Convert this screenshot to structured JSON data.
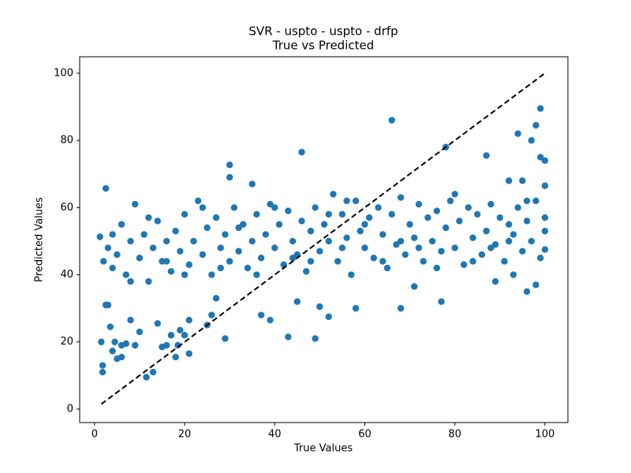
{
  "chart_data": {
    "type": "scatter",
    "title": "SVR - uspto - uspto - drfp",
    "subtitle": "True vs Predicted",
    "xlabel": "True Values",
    "ylabel": "Predicted Values",
    "xlim": [
      -3.3,
      105.1
    ],
    "ylim": [
      -4.0,
      104.9
    ],
    "xticks": [
      0,
      20,
      40,
      60,
      80,
      100
    ],
    "yticks": [
      0,
      20,
      40,
      60,
      80,
      100
    ],
    "grid": false,
    "series": [
      {
        "color": "#1f77b4",
        "x": [
          2.5,
          1.2,
          1.5,
          1.8,
          1.8,
          2.5,
          3,
          3.5,
          4,
          4.5,
          5,
          6,
          6,
          7,
          8,
          9,
          10,
          11.5,
          13,
          14,
          15,
          16,
          17,
          18,
          18.5,
          19,
          20,
          21,
          21,
          25,
          26,
          27,
          29,
          30,
          30,
          35,
          37,
          39,
          43,
          45,
          46,
          49,
          50,
          52,
          55,
          58,
          66,
          68,
          71,
          77,
          78,
          87,
          89,
          94,
          96,
          98,
          98,
          99,
          99,
          100,
          100,
          100,
          97,
          92,
          93,
          95,
          2,
          3,
          4,
          5,
          6,
          7,
          8,
          9,
          10,
          11,
          12,
          13,
          14,
          15,
          16,
          17,
          18,
          19,
          20,
          21,
          22,
          23,
          24,
          25,
          26,
          27,
          28,
          29,
          30,
          31,
          32,
          33,
          34,
          35,
          36,
          37,
          38,
          39,
          40,
          41,
          42,
          43,
          44,
          45,
          46,
          47,
          48,
          49,
          50,
          51,
          52,
          53,
          54,
          55,
          56,
          57,
          58,
          59,
          60,
          61,
          62,
          63,
          64,
          65,
          66,
          67,
          68,
          69,
          70,
          71,
          72,
          73,
          74,
          75,
          76,
          77,
          78,
          79,
          80,
          81,
          82,
          83,
          84,
          85,
          86,
          87,
          88,
          89,
          90,
          91,
          92,
          93,
          94,
          95,
          96,
          97,
          98,
          99,
          100,
          4,
          8,
          12,
          16,
          20,
          24,
          28,
          32,
          36,
          40,
          44,
          48,
          52,
          56,
          60,
          64,
          68,
          72,
          76,
          80,
          84,
          88,
          92,
          96,
          100
        ],
        "y": [
          65.7,
          51.3,
          20,
          13,
          11,
          31,
          31,
          24.5,
          17.3,
          20,
          15,
          15.5,
          19,
          19.5,
          26.5,
          19,
          23,
          9.5,
          11,
          25.5,
          18.5,
          19,
          22,
          15.5,
          19,
          23.5,
          22,
          16.5,
          26.5,
          25,
          28,
          33,
          21,
          72.7,
          69,
          67,
          28,
          26.5,
          21.5,
          32,
          76.5,
          21,
          30.5,
          27.5,
          48,
          30,
          86,
          30,
          36.5,
          32,
          78,
          75.5,
          38,
          82,
          35,
          84.5,
          37,
          89.5,
          75,
          74,
          66.5,
          47.5,
          80,
          68,
          40,
          68,
          44,
          48,
          42,
          46,
          55,
          40,
          50,
          61,
          45,
          52,
          38,
          48,
          56,
          44,
          50,
          41,
          53,
          47,
          58,
          43,
          50,
          62,
          46,
          54,
          40,
          57,
          48,
          52,
          44,
          60,
          47,
          55,
          42,
          50,
          58,
          45,
          52,
          61,
          48,
          55,
          43,
          59,
          50,
          46,
          56,
          41,
          53,
          60,
          47,
          55,
          50,
          64,
          44,
          58,
          51,
          40,
          62,
          53,
          48,
          57,
          45,
          60,
          52,
          42,
          58,
          49,
          63,
          46,
          55,
          51,
          61,
          44,
          57,
          50,
          59,
          47,
          54,
          62,
          48,
          56,
          43,
          60,
          51,
          58,
          46,
          53,
          61,
          49,
          57,
          44,
          55,
          52,
          60,
          47,
          56,
          50,
          62,
          45,
          53,
          52,
          38,
          57,
          44,
          40,
          60,
          42,
          54,
          40,
          60,
          45,
          44,
          58,
          62,
          55,
          44,
          50,
          48,
          42,
          64,
          44,
          48,
          50,
          62,
          57
        ]
      },
      {
        "color": "#000000",
        "style": "dashed",
        "x": [
          1.5,
          100
        ],
        "y": [
          1.5,
          100
        ]
      }
    ]
  }
}
